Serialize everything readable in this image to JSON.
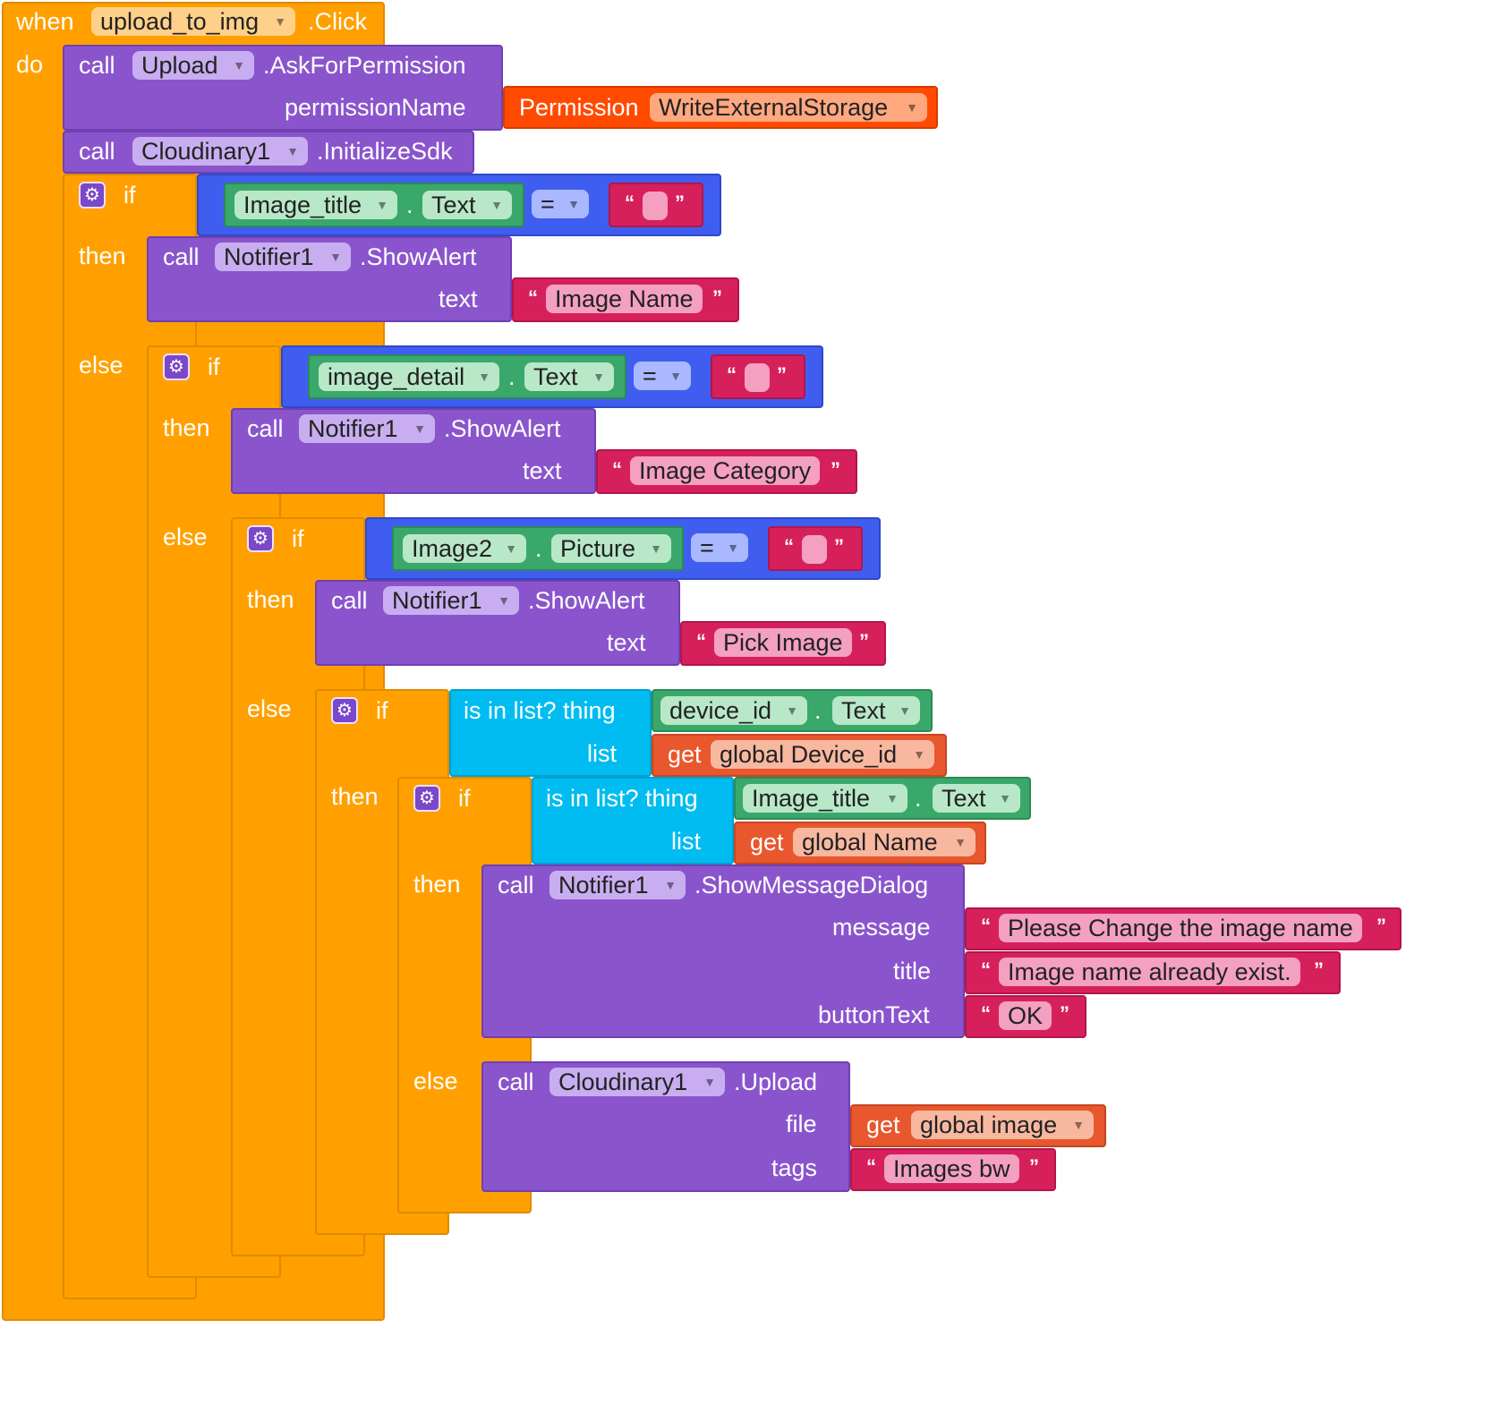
{
  "event": {
    "when": "when",
    "component": "upload_to_img",
    "event": ".Click",
    "do": "do"
  },
  "ask": {
    "call": "call",
    "component": "Upload",
    "method": ".AskForPermission",
    "param": "permissionName",
    "perm_label": "Permission",
    "perm_value": "WriteExternalStorage"
  },
  "init": {
    "call": "call",
    "component": "Cloudinary1",
    "method": ".InitializeSdk"
  },
  "kw": {
    "if": "if",
    "then": "then",
    "else": "else",
    "call": "call",
    "get": "get",
    "text": "text",
    "isinlist": "is in list? thing",
    "list": "list",
    "dot": ".",
    "eq": "=",
    "open_q": "“",
    "close_q": "”"
  },
  "if1": {
    "component": "Image_title",
    "prop": "Text",
    "alert_component": "Notifier1",
    "alert_method": ".ShowAlert",
    "alert_text": "Image Name"
  },
  "if2": {
    "component": "image_detail",
    "prop": "Text",
    "alert_component": "Notifier1",
    "alert_method": ".ShowAlert",
    "alert_text": "Image Category"
  },
  "if3": {
    "component": "Image2",
    "prop": "Picture",
    "alert_component": "Notifier1",
    "alert_method": ".ShowAlert",
    "alert_text": "Pick Image"
  },
  "if4": {
    "component": "device_id",
    "prop": "Text",
    "var": "global Device_id"
  },
  "if5": {
    "component": "Image_title",
    "prop": "Text",
    "var": "global Name"
  },
  "dialog": {
    "component": "Notifier1",
    "method": ".ShowMessageDialog",
    "message_label": "message",
    "message": "Please Change the image name",
    "title_label": "title",
    "title": "Image name already exist.",
    "button_label": "buttonText",
    "button": "OK"
  },
  "upload": {
    "component": "Cloudinary1",
    "method": ".Upload",
    "file_label": "file",
    "file_var": "global image",
    "tags_label": "tags",
    "tags": "Images bw"
  },
  "colors": {
    "control": "#ffa000",
    "procedure": "#8a55cc",
    "logic": "#3f5ef0",
    "text": "#d6205c",
    "component": "#3aa86a",
    "list": "#00bcf0",
    "variable": "#e8572d",
    "permission": "#ff4a00"
  }
}
